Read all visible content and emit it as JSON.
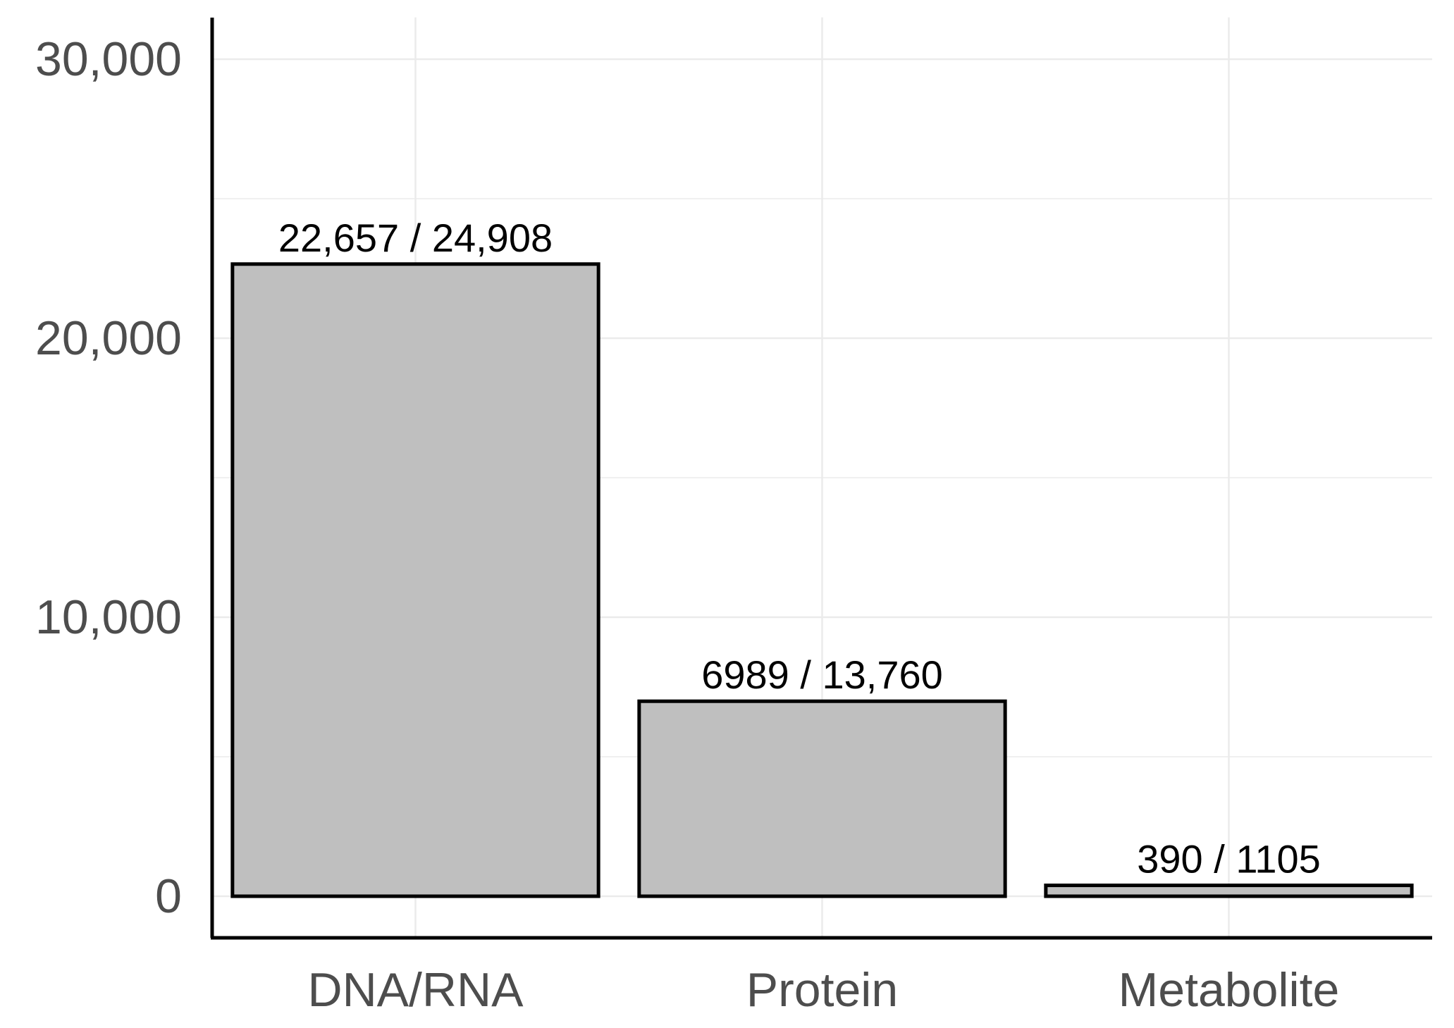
{
  "chart_data": {
    "type": "bar",
    "title": "",
    "xlabel": "",
    "ylabel": "",
    "categories": [
      "DNA/RNA",
      "Protein",
      "Metabolite"
    ],
    "values": [
      22657,
      6989,
      390
    ],
    "totals": [
      24908,
      13760,
      1105
    ],
    "data_labels": [
      "22,657 / 24,908",
      "6989 / 13,760",
      "390 / 1105"
    ],
    "ylim": [
      -1500,
      31500
    ],
    "yticks": [
      0,
      10000,
      20000,
      30000
    ],
    "ytick_labels": [
      "0",
      "10,000",
      "20,000",
      "30,000"
    ],
    "grid": true,
    "legend": "none",
    "bar_fill": "#bfbfbf",
    "bar_stroke": "#000000"
  }
}
